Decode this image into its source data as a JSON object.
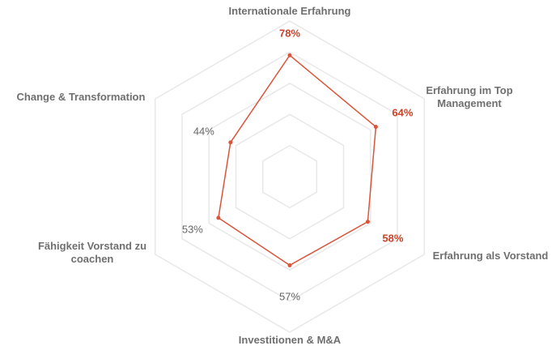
{
  "chart_data": {
    "type": "radar",
    "categories": [
      "Internationale Erfahrung",
      "Erfahrung im Top Management",
      "Erfahrung als Vorstand",
      "Investitionen & M&A",
      "Fähigkeit Vorstand zu coachen",
      "Change & Transformation"
    ],
    "values": [
      78,
      64,
      58,
      57,
      53,
      44
    ],
    "value_labels": [
      "78%",
      "64%",
      "58%",
      "57%",
      "53%",
      "44%"
    ],
    "value_label_colors": [
      "#c8452c",
      "#c8452c",
      "#c8452c",
      "#666666",
      "#666666",
      "#666666"
    ],
    "color": "#d9553b",
    "rlim": [
      0,
      100
    ],
    "rticks": [
      20,
      40,
      60,
      80,
      100
    ],
    "grid": true
  }
}
